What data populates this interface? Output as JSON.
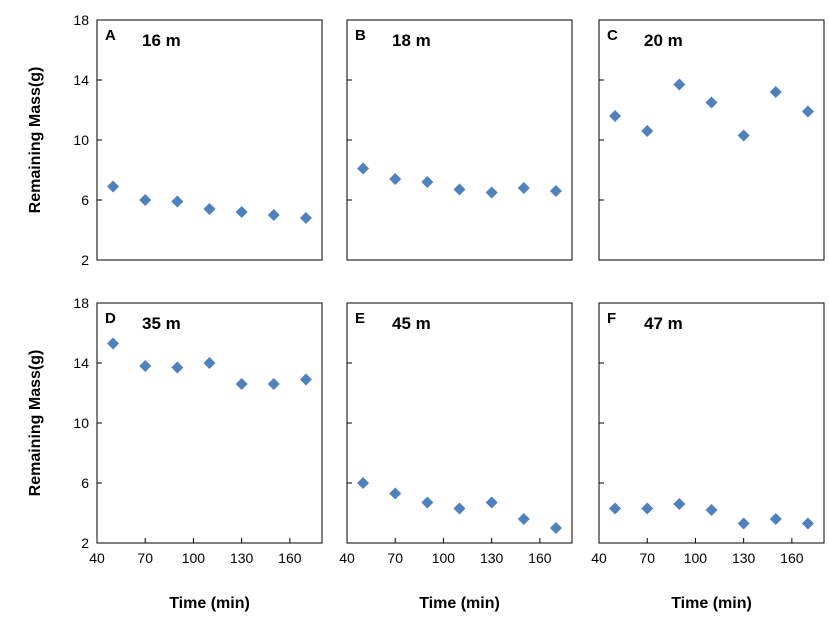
{
  "chart_data": {
    "type": "scatter",
    "marker": "diamond",
    "marker_color": "#4f81bd",
    "ylabel": "Remaining Mass(g)",
    "xlabel": "Time (min)",
    "xlim": [
      40,
      180
    ],
    "ylim": [
      2,
      18
    ],
    "xticks": [
      40,
      70,
      100,
      130,
      160
    ],
    "yticks": [
      2,
      6,
      10,
      14,
      18
    ],
    "x": [
      50,
      70,
      90,
      110,
      130,
      150,
      170
    ],
    "panels": [
      {
        "letter": "A",
        "depth": "16 m",
        "y": [
          6.9,
          6.0,
          5.9,
          5.4,
          5.2,
          5.0,
          4.8
        ]
      },
      {
        "letter": "B",
        "depth": "18 m",
        "y": [
          8.1,
          7.4,
          7.2,
          6.7,
          6.5,
          6.8,
          6.6
        ]
      },
      {
        "letter": "C",
        "depth": "20 m",
        "y": [
          11.6,
          10.6,
          13.7,
          12.5,
          10.3,
          13.2,
          11.9
        ]
      },
      {
        "letter": "D",
        "depth": "35 m",
        "y": [
          15.3,
          13.8,
          13.7,
          14.0,
          12.6,
          12.6,
          12.9
        ]
      },
      {
        "letter": "E",
        "depth": "45 m",
        "y": [
          6.0,
          5.3,
          4.7,
          4.3,
          4.7,
          3.6,
          3.0
        ]
      },
      {
        "letter": "F",
        "depth": "47 m",
        "y": [
          4.3,
          4.3,
          4.6,
          4.2,
          3.3,
          3.6,
          3.3
        ]
      }
    ]
  }
}
